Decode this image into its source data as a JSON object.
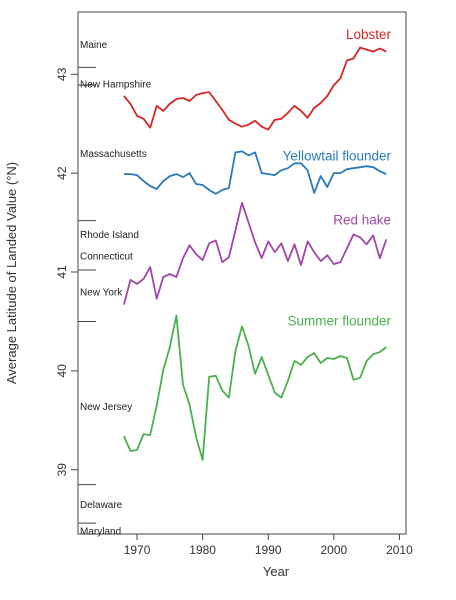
{
  "chart_data": {
    "type": "line",
    "xlabel": "Year",
    "ylabel": "Average Latitude of Landed Value (°N)",
    "xlim": [
      1961,
      2011
    ],
    "ylim": [
      38.35,
      43.63
    ],
    "x_ticks": [
      1970,
      1980,
      1990,
      2000,
      2010
    ],
    "y_ticks": [
      39,
      40,
      41,
      42,
      43
    ],
    "x_tick_labels": [
      "1970",
      "1980",
      "1990",
      "2000",
      "2010"
    ],
    "y_tick_labels": [
      "39",
      "40",
      "41",
      "42",
      "43"
    ],
    "state_labels": [
      {
        "name": "Maine",
        "lat": 43.3
      },
      {
        "name": "New Hampshire",
        "lat": 42.9
      },
      {
        "name": "Massachusetts",
        "lat": 42.2
      },
      {
        "name": "Rhode Island",
        "lat": 41.38
      },
      {
        "name": "Connecticut",
        "lat": 41.16
      },
      {
        "name": "New York",
        "lat": 40.8
      },
      {
        "name": "New Jersey",
        "lat": 39.64
      },
      {
        "name": "Delaware",
        "lat": 38.65
      },
      {
        "name": "Maryland",
        "lat": 38.38
      }
    ],
    "state_ticks": [
      43.07,
      42.89,
      41.52,
      41.02,
      40.5,
      38.85,
      38.46
    ],
    "x": [
      1968,
      1969,
      1970,
      1971,
      1972,
      1973,
      1974,
      1975,
      1976,
      1977,
      1978,
      1979,
      1980,
      1981,
      1982,
      1983,
      1984,
      1985,
      1986,
      1987,
      1988,
      1989,
      1990,
      1991,
      1992,
      1993,
      1994,
      1995,
      1996,
      1997,
      1998,
      1999,
      2000,
      2001,
      2002,
      2003,
      2004,
      2005,
      2006,
      2007,
      2008
    ],
    "series": [
      {
        "name": "Lobster",
        "color": "#d62728",
        "values": [
          42.78,
          42.7,
          42.58,
          42.55,
          42.46,
          42.68,
          42.63,
          42.7,
          42.75,
          42.76,
          42.73,
          42.79,
          42.81,
          42.82,
          42.73,
          42.64,
          42.54,
          42.5,
          42.47,
          42.49,
          42.53,
          42.47,
          42.44,
          42.54,
          42.55,
          42.61,
          42.68,
          42.63,
          42.56,
          42.66,
          42.71,
          42.78,
          42.89,
          42.96,
          43.14,
          43.16,
          43.27,
          43.25,
          43.23,
          43.26,
          43.23
        ]
      },
      {
        "name": "Yellowtail flounder",
        "color": "#2a7ab8",
        "values": [
          41.99,
          41.99,
          41.98,
          41.92,
          41.87,
          41.84,
          41.92,
          41.97,
          41.99,
          41.96,
          42.0,
          41.89,
          41.88,
          41.83,
          41.79,
          41.83,
          41.85,
          42.21,
          42.22,
          42.18,
          42.21,
          42.0,
          41.99,
          41.98,
          42.03,
          42.05,
          42.1,
          42.1,
          42.03,
          41.8,
          41.97,
          41.86,
          42.0,
          42.0,
          42.04,
          42.05,
          42.06,
          42.07,
          42.06,
          42.02,
          41.99
        ]
      },
      {
        "name": "Red hake",
        "color": "#a048a8",
        "values": [
          40.67,
          40.92,
          40.88,
          40.93,
          41.05,
          40.73,
          40.95,
          40.98,
          40.95,
          41.14,
          41.27,
          41.18,
          41.12,
          41.29,
          41.32,
          41.1,
          41.15,
          41.42,
          41.7,
          41.5,
          41.3,
          41.14,
          41.31,
          41.2,
          41.29,
          41.11,
          41.28,
          41.07,
          41.31,
          41.2,
          41.11,
          41.17,
          41.08,
          41.1,
          41.24,
          41.38,
          41.35,
          41.28,
          41.37,
          41.14,
          41.33
        ]
      },
      {
        "name": "Summer flounder",
        "color": "#4caf50",
        "values": [
          39.34,
          39.19,
          39.2,
          39.36,
          39.35,
          39.65,
          40.01,
          40.24,
          40.56,
          39.86,
          39.66,
          39.33,
          39.1,
          39.94,
          39.95,
          39.8,
          39.73,
          40.2,
          40.45,
          40.25,
          39.97,
          40.14,
          39.96,
          39.78,
          39.73,
          39.9,
          40.1,
          40.06,
          40.14,
          40.18,
          40.08,
          40.13,
          40.12,
          40.15,
          40.13,
          39.91,
          39.93,
          40.1,
          40.17,
          40.19,
          40.24
        ]
      }
    ]
  }
}
